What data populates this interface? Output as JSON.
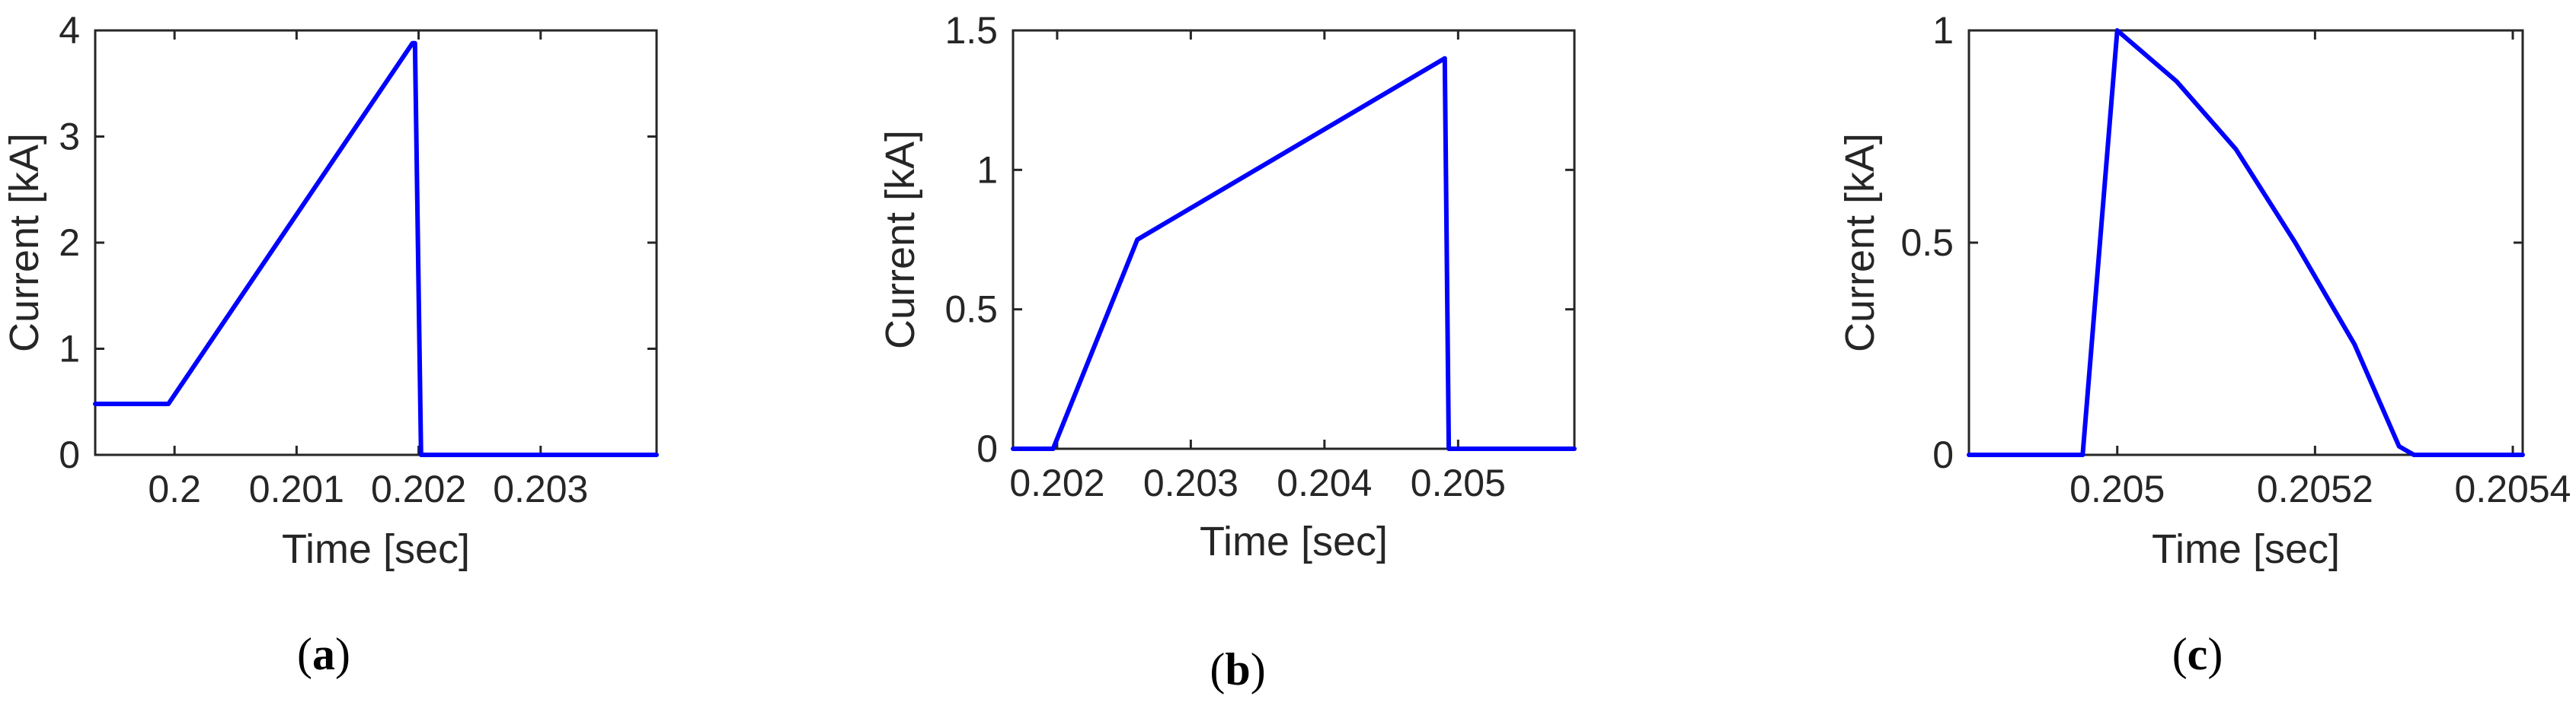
{
  "chart_data": [
    {
      "type": "line",
      "panel_label": "a",
      "xlabel": "Time [sec]",
      "ylabel": "Current [kA]",
      "xlim": [
        0.19935,
        0.20395
      ],
      "ylim": [
        0,
        4
      ],
      "xticks": [
        0.2,
        0.201,
        0.202,
        0.203
      ],
      "xtick_labels": [
        "0.2",
        "0.201",
        "0.202",
        "0.203"
      ],
      "yticks": [
        0,
        1,
        2,
        3,
        4
      ],
      "ytick_labels": [
        "0",
        "1",
        "2",
        "3",
        "4"
      ],
      "grid": false,
      "series": [
        {
          "color": "#0000ff",
          "x": [
            0.19935,
            0.19995,
            0.20195,
            0.20197,
            0.20202,
            0.20395
          ],
          "y": [
            0.48,
            0.48,
            3.88,
            3.88,
            0.0,
            0.0
          ]
        }
      ]
    },
    {
      "type": "line",
      "panel_label": "b",
      "xlabel": "Time [sec]",
      "ylabel": "Current [kA]",
      "xlim": [
        0.20167,
        0.20587
      ],
      "ylim": [
        0,
        1.5
      ],
      "xticks": [
        0.202,
        0.203,
        0.204,
        0.205
      ],
      "xtick_labels": [
        "0.202",
        "0.203",
        "0.204",
        "0.205"
      ],
      "yticks": [
        0,
        0.5,
        1,
        1.5
      ],
      "ytick_labels": [
        "0",
        "0.5",
        "1",
        "1.5"
      ],
      "grid": false,
      "series": [
        {
          "color": "#0000ff",
          "x": [
            0.20167,
            0.20197,
            0.2026,
            0.2049,
            0.20493,
            0.20587
          ],
          "y": [
            0.0,
            0.0,
            0.75,
            1.4,
            0.0,
            0.0
          ]
        }
      ]
    },
    {
      "type": "line",
      "panel_label": "c",
      "xlabel": "Time [sec]",
      "ylabel": "Current [kA]",
      "xlim": [
        0.20485,
        0.20541
      ],
      "ylim": [
        0,
        1
      ],
      "xticks": [
        0.205,
        0.2052,
        0.2054
      ],
      "xtick_labels": [
        "0.205",
        "0.2052",
        "0.2054"
      ],
      "yticks": [
        0,
        0.5,
        1
      ],
      "ytick_labels": [
        "0",
        "0.5",
        "1"
      ],
      "grid": false,
      "series": [
        {
          "color": "#0000ff",
          "x": [
            0.20485,
            0.204965,
            0.205,
            0.20506,
            0.20512,
            0.20518,
            0.20524,
            0.205285,
            0.2053,
            0.20541
          ],
          "y": [
            0.0,
            0.0,
            1.0,
            0.88,
            0.72,
            0.5,
            0.26,
            0.02,
            0.0,
            0.0
          ]
        }
      ]
    }
  ]
}
